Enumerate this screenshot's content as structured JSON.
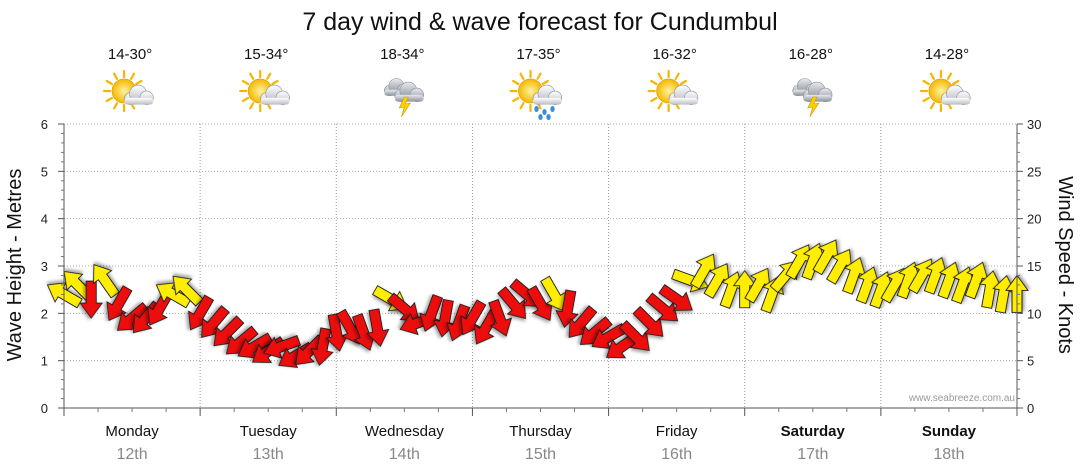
{
  "chart_data": {
    "type": "line",
    "title": "7 day wind & wave forecast for Cundumbul",
    "y_left_label": "Wave Height - Metres",
    "y_right_label": "Wind Speed - Knots",
    "y_left_range": [
      0,
      6
    ],
    "y_left_ticks": [
      "0",
      "1",
      "2",
      "3",
      "4",
      "5",
      "6"
    ],
    "y_right_range": [
      0,
      30
    ],
    "y_right_ticks": [
      "0",
      "5",
      "10",
      "15",
      "20",
      "25",
      "30"
    ],
    "credit": "www.seabreeze.com.au",
    "days": [
      {
        "day": "Monday",
        "date": "12th",
        "temp": "14-30°",
        "icon": "sun-cloud-icon",
        "weekend": false
      },
      {
        "day": "Tuesday",
        "date": "13th",
        "temp": "15-34°",
        "icon": "sun-cloud-icon",
        "weekend": false
      },
      {
        "day": "Wednesday",
        "date": "14th",
        "temp": "18-34°",
        "icon": "storm-cloud-icon",
        "weekend": false
      },
      {
        "day": "Thursday",
        "date": "15th",
        "temp": "17-35°",
        "icon": "sun-rain-icon",
        "weekend": false
      },
      {
        "day": "Friday",
        "date": "16th",
        "temp": "16-32°",
        "icon": "sun-cloud-icon",
        "weekend": false
      },
      {
        "day": "Saturday",
        "date": "17th",
        "temp": "16-28°",
        "icon": "storm-cloud-icon",
        "weekend": true
      },
      {
        "day": "Sunday",
        "date": "18th",
        "temp": "14-28°",
        "icon": "sun-cloud-icon",
        "weekend": true
      }
    ],
    "series": [
      {
        "name": "wind",
        "unit": "knots",
        "colors": {
          "strong": "#ee1111",
          "light": "#ffee00"
        },
        "points": [
          {
            "t": 0.0,
            "v": 12.0,
            "dir": 210,
            "c": "light"
          },
          {
            "t": 0.1,
            "v": 13.0,
            "dir": 225,
            "c": "light"
          },
          {
            "t": 0.2,
            "v": 11.5,
            "dir": 90,
            "c": "strong"
          },
          {
            "t": 0.3,
            "v": 13.5,
            "dir": 235,
            "c": "light"
          },
          {
            "t": 0.4,
            "v": 11.0,
            "dir": 120,
            "c": "strong"
          },
          {
            "t": 0.5,
            "v": 9.5,
            "dir": 140,
            "c": "strong"
          },
          {
            "t": 0.6,
            "v": 9.5,
            "dir": 130,
            "c": "strong"
          },
          {
            "t": 0.7,
            "v": 10.5,
            "dir": 120,
            "c": "strong"
          },
          {
            "t": 0.8,
            "v": 12.0,
            "dir": 210,
            "c": "light"
          },
          {
            "t": 0.9,
            "v": 12.5,
            "dir": 225,
            "c": "light"
          },
          {
            "t": 1.0,
            "v": 10.0,
            "dir": 120,
            "c": "strong"
          },
          {
            "t": 1.1,
            "v": 9.0,
            "dir": 130,
            "c": "strong"
          },
          {
            "t": 1.2,
            "v": 8.0,
            "dir": 135,
            "c": "strong"
          },
          {
            "t": 1.3,
            "v": 7.0,
            "dir": 140,
            "c": "strong"
          },
          {
            "t": 1.4,
            "v": 6.5,
            "dir": 150,
            "c": "strong"
          },
          {
            "t": 1.5,
            "v": 6.0,
            "dir": 145,
            "c": "strong"
          },
          {
            "t": 1.6,
            "v": 6.5,
            "dir": 160,
            "c": "strong"
          },
          {
            "t": 1.7,
            "v": 5.5,
            "dir": 150,
            "c": "strong"
          },
          {
            "t": 1.8,
            "v": 6.0,
            "dir": 135,
            "c": "strong"
          },
          {
            "t": 1.9,
            "v": 6.5,
            "dir": 100,
            "c": "strong"
          },
          {
            "t": 2.0,
            "v": 8.0,
            "dir": 80,
            "c": "strong"
          },
          {
            "t": 2.1,
            "v": 8.5,
            "dir": 60,
            "c": "strong"
          },
          {
            "t": 2.2,
            "v": 8.0,
            "dir": 70,
            "c": "strong"
          },
          {
            "t": 2.3,
            "v": 8.5,
            "dir": 80,
            "c": "strong"
          },
          {
            "t": 2.4,
            "v": 11.5,
            "dir": 30,
            "c": "light"
          },
          {
            "t": 2.5,
            "v": 10.5,
            "dir": 40,
            "c": "strong"
          },
          {
            "t": 2.6,
            "v": 9.0,
            "dir": 160,
            "c": "strong"
          },
          {
            "t": 2.7,
            "v": 10.0,
            "dir": 110,
            "c": "strong"
          },
          {
            "t": 2.8,
            "v": 9.5,
            "dir": 100,
            "c": "strong"
          },
          {
            "t": 2.9,
            "v": 9.0,
            "dir": 110,
            "c": "strong"
          },
          {
            "t": 3.0,
            "v": 9.5,
            "dir": 120,
            "c": "strong"
          },
          {
            "t": 3.1,
            "v": 8.5,
            "dir": 120,
            "c": "strong"
          },
          {
            "t": 3.2,
            "v": 9.5,
            "dir": 70,
            "c": "strong"
          },
          {
            "t": 3.3,
            "v": 11.0,
            "dir": 50,
            "c": "strong"
          },
          {
            "t": 3.4,
            "v": 12.0,
            "dir": 40,
            "c": "strong"
          },
          {
            "t": 3.5,
            "v": 11.0,
            "dir": 60,
            "c": "strong"
          },
          {
            "t": 3.6,
            "v": 12.0,
            "dir": 60,
            "c": "light"
          },
          {
            "t": 3.7,
            "v": 10.5,
            "dir": 100,
            "c": "strong"
          },
          {
            "t": 3.8,
            "v": 9.0,
            "dir": 130,
            "c": "strong"
          },
          {
            "t": 3.9,
            "v": 8.0,
            "dir": 140,
            "c": "strong"
          },
          {
            "t": 4.0,
            "v": 7.5,
            "dir": 150,
            "c": "strong"
          },
          {
            "t": 4.1,
            "v": 6.5,
            "dir": 145,
            "c": "strong"
          },
          {
            "t": 4.2,
            "v": 7.5,
            "dir": 45,
            "c": "strong"
          },
          {
            "t": 4.3,
            "v": 9.0,
            "dir": 45,
            "c": "strong"
          },
          {
            "t": 4.4,
            "v": 10.5,
            "dir": 40,
            "c": "strong"
          },
          {
            "t": 4.5,
            "v": 11.5,
            "dir": 35,
            "c": "strong"
          },
          {
            "t": 4.6,
            "v": 13.5,
            "dir": 20,
            "c": "light"
          },
          {
            "t": 4.7,
            "v": 14.5,
            "dir": 300,
            "c": "light"
          },
          {
            "t": 4.8,
            "v": 13.5,
            "dir": 300,
            "c": "light"
          },
          {
            "t": 4.9,
            "v": 12.5,
            "dir": 290,
            "c": "light"
          },
          {
            "t": 5.0,
            "v": 12.5,
            "dir": 270,
            "c": "light"
          },
          {
            "t": 5.1,
            "v": 13.0,
            "dir": 300,
            "c": "light"
          },
          {
            "t": 5.2,
            "v": 12.0,
            "dir": 290,
            "c": "light"
          },
          {
            "t": 5.3,
            "v": 14.0,
            "dir": 310,
            "c": "light"
          },
          {
            "t": 5.4,
            "v": 15.5,
            "dir": 300,
            "c": "light"
          },
          {
            "t": 5.5,
            "v": 15.5,
            "dir": 290,
            "c": "light"
          },
          {
            "t": 5.6,
            "v": 16.0,
            "dir": 300,
            "c": "light"
          },
          {
            "t": 5.7,
            "v": 15.0,
            "dir": 300,
            "c": "light"
          },
          {
            "t": 5.8,
            "v": 14.0,
            "dir": 290,
            "c": "light"
          },
          {
            "t": 5.9,
            "v": 13.0,
            "dir": 290,
            "c": "light"
          },
          {
            "t": 6.0,
            "v": 12.5,
            "dir": 290,
            "c": "light"
          },
          {
            "t": 6.1,
            "v": 13.0,
            "dir": 300,
            "c": "light"
          },
          {
            "t": 6.2,
            "v": 13.5,
            "dir": 290,
            "c": "light"
          },
          {
            "t": 6.3,
            "v": 14.0,
            "dir": 300,
            "c": "light"
          },
          {
            "t": 6.4,
            "v": 14.0,
            "dir": 290,
            "c": "light"
          },
          {
            "t": 6.5,
            "v": 13.5,
            "dir": 290,
            "c": "light"
          },
          {
            "t": 6.6,
            "v": 13.0,
            "dir": 290,
            "c": "light"
          },
          {
            "t": 6.7,
            "v": 13.5,
            "dir": 290,
            "c": "light"
          },
          {
            "t": 6.8,
            "v": 12.5,
            "dir": 280,
            "c": "light"
          },
          {
            "t": 6.9,
            "v": 12.0,
            "dir": 280,
            "c": "light"
          },
          {
            "t": 7.0,
            "v": 12.0,
            "dir": 270,
            "c": "light"
          }
        ]
      }
    ]
  }
}
